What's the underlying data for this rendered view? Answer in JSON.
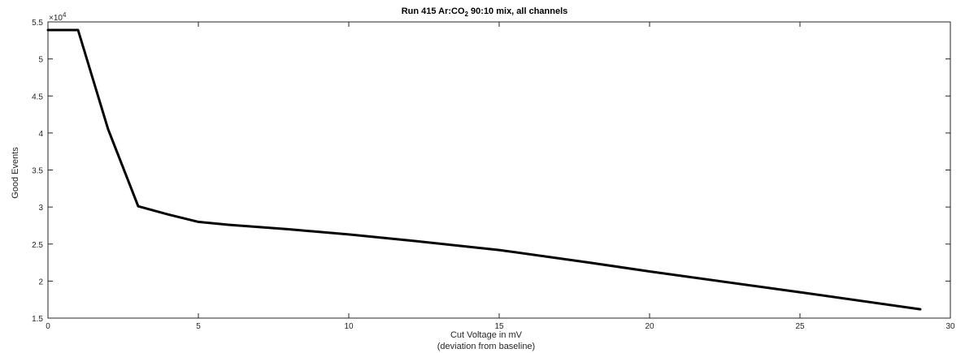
{
  "chart_data": {
    "type": "line",
    "title": "Run 415 Ar:CO",
    "title_sub": "2",
    "title_rest": " 90:10 mix, all channels",
    "xlabel": "Cut Voltage in mV",
    "xlabel_line2": "(deviation from baseline)",
    "ylabel": "Good Events",
    "y_exponent_label": "×10",
    "y_exponent": "4",
    "xlim": [
      0,
      30
    ],
    "ylim": [
      1.5,
      5.5
    ],
    "grid": false,
    "x_ticks": [
      0,
      5,
      10,
      15,
      20,
      25,
      30
    ],
    "y_ticks": [
      1.5,
      2,
      2.5,
      3,
      3.5,
      4,
      4.5,
      5,
      5.5
    ],
    "x_tick_labels": [
      "0",
      "5",
      "10",
      "15",
      "20",
      "25",
      "30"
    ],
    "y_tick_labels": [
      "1.5",
      "2",
      "2.5",
      "3",
      "3.5",
      "4",
      "4.5",
      "5",
      "5.5"
    ],
    "series": [
      {
        "color": "#000000",
        "x": [
          0,
          1,
          2,
          3,
          4,
          5,
          6,
          8,
          10,
          12,
          15,
          18,
          20,
          25,
          29
        ],
        "y": [
          5.39,
          5.39,
          4.05,
          3.01,
          2.9,
          2.8,
          2.76,
          2.7,
          2.63,
          2.55,
          2.42,
          2.25,
          2.13,
          1.85,
          1.62
        ]
      }
    ]
  }
}
